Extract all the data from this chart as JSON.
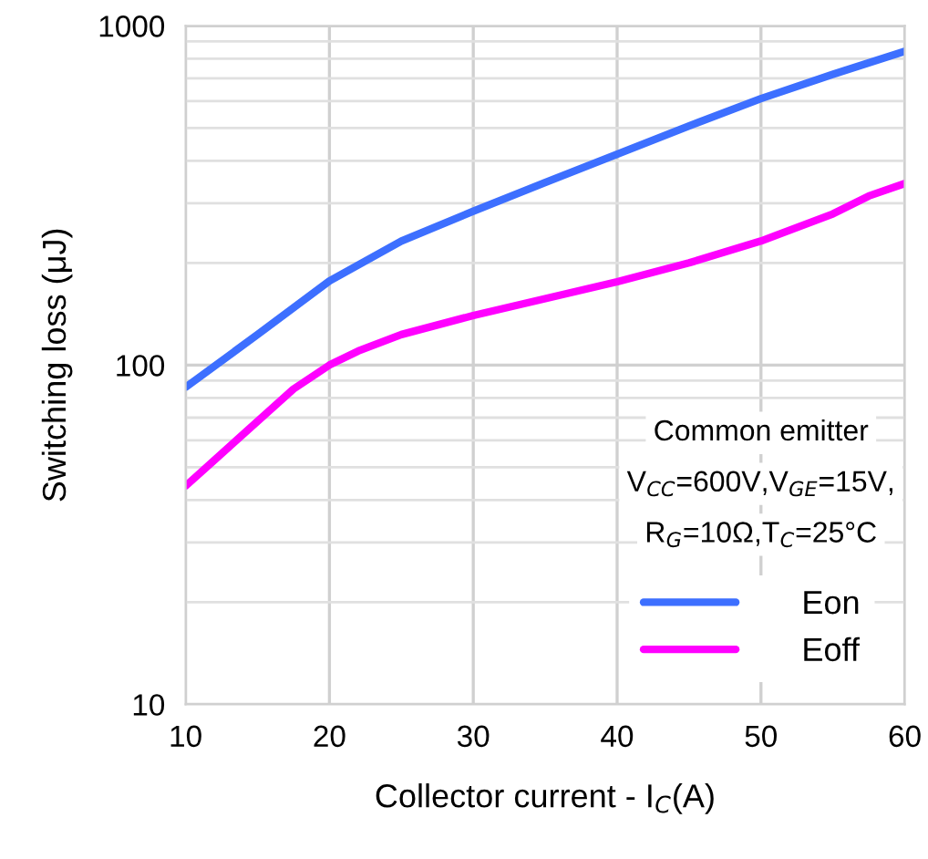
{
  "chart_data": {
    "type": "line",
    "xlabel": "Collector current - I$_{C}$(A)",
    "ylabel": "Switching loss (μJ)",
    "annotations": [
      "Common emitter",
      "V$_{CC}$=600V,V$_{GE}$=15V,",
      "R$_{G}$=10Ω,T$_{C}$=25°C"
    ],
    "log": "y",
    "grid": true,
    "legend": "bottom right",
    "marker": "none",
    "line_style": "solid",
    "xlim": [
      10,
      60
    ],
    "xticks": [
      10,
      20,
      30,
      40,
      50,
      60
    ],
    "ylim": [
      10,
      1000
    ],
    "yticks": [
      10,
      100,
      1000
    ],
    "series": [
      {
        "name": "Eon",
        "color": "#3d6fff",
        "x": [
          10,
          15,
          20,
          25,
          30,
          35,
          40,
          45,
          50,
          55,
          60
        ],
        "values": [
          86,
          123,
          177,
          232,
          284,
          345,
          418,
          507,
          610,
          719,
          841
        ]
      },
      {
        "name": "Eoff",
        "color": "#ff00ff",
        "x": [
          10,
          17.5,
          20,
          22,
          25,
          30,
          35,
          40,
          45,
          50,
          55,
          57.5,
          60
        ],
        "values": [
          44,
          85,
          100,
          110,
          123,
          140,
          157,
          176,
          200,
          232,
          279,
          315,
          343
        ]
      }
    ]
  }
}
